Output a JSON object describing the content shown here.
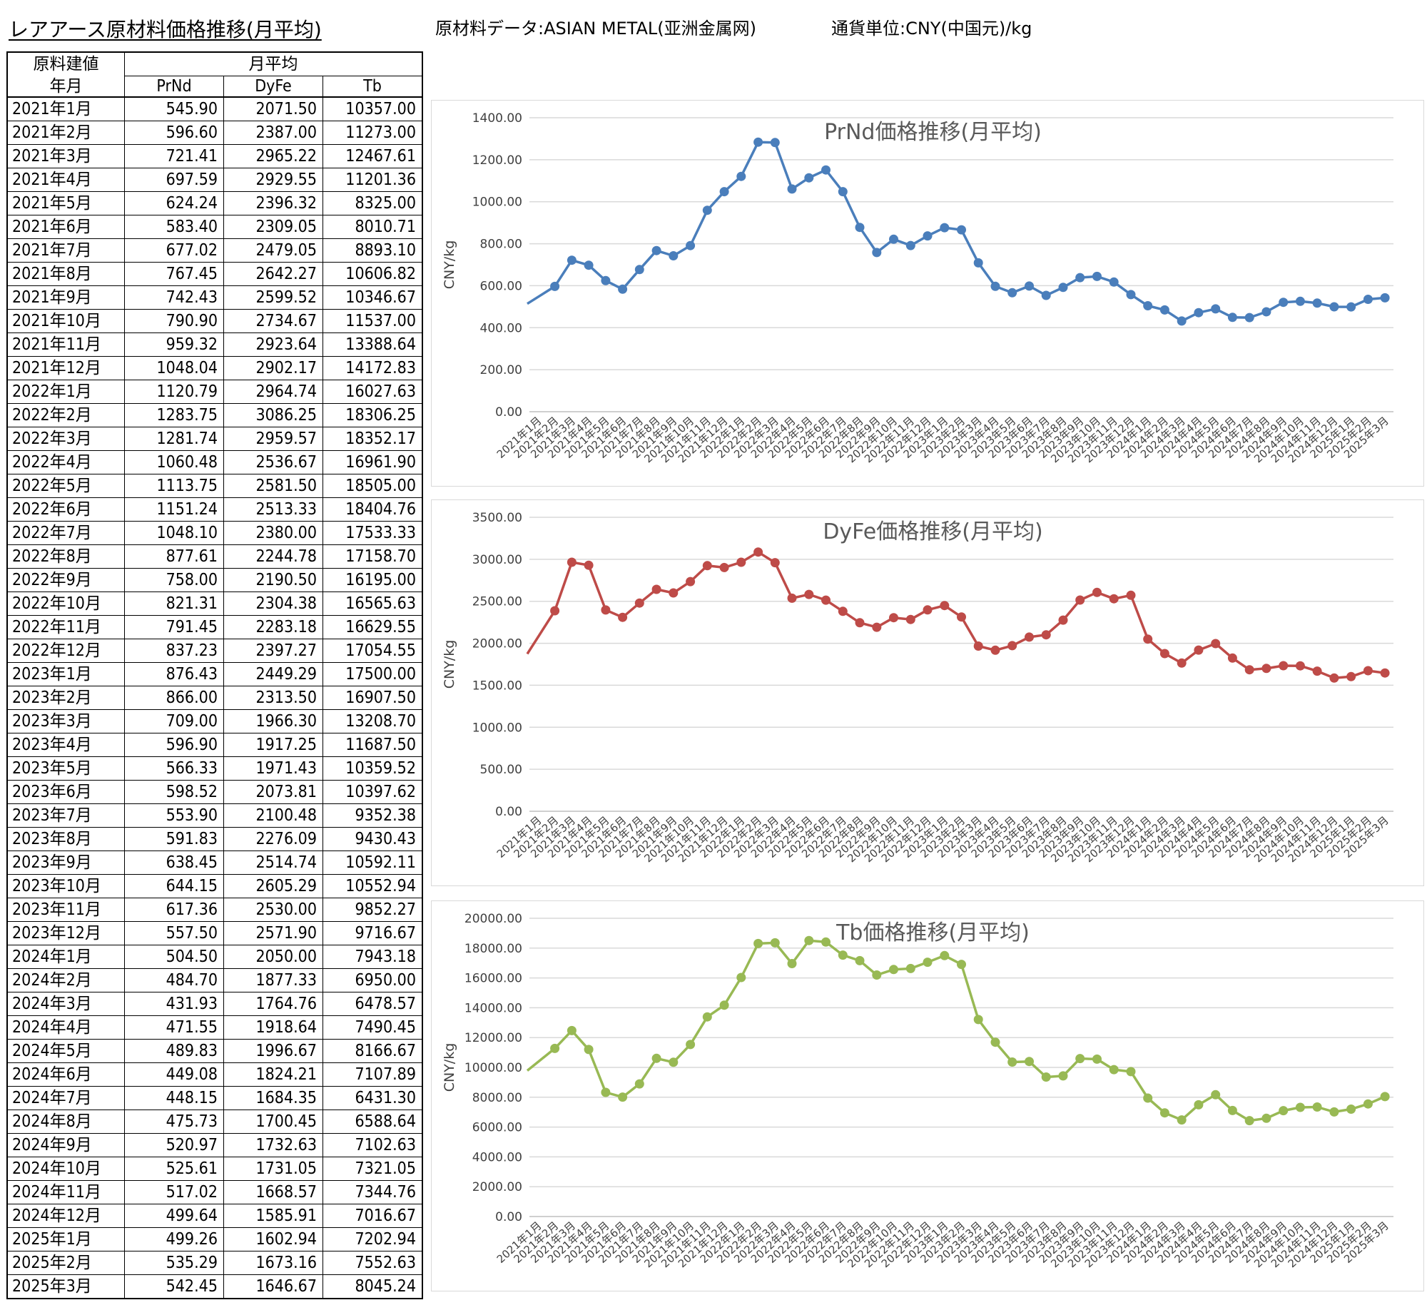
{
  "header": {
    "title": "レアアース原材料価格推移(月平均)",
    "source": "原材料データ:ASIAN METAL(亚洲金属网)",
    "unit": "通貨単位:CNY(中国元)/kg"
  },
  "table": {
    "col1_line1": "原料建値",
    "col1_line2": "年月",
    "group_header": "月平均",
    "columns": [
      "PrNd",
      "DyFe",
      "Tb"
    ]
  },
  "colors": {
    "PrNd": "#4a7ebb",
    "DyFe": "#be4b48",
    "Tb": "#98b954",
    "grid": "#d9d9d9"
  },
  "chart_data": [
    {
      "type": "line",
      "title": "PrNd価格推移(月平均)",
      "ylabel": "CNY/kg",
      "ylim": [
        0,
        1400
      ],
      "ytick_step": 200,
      "grid": true,
      "legend": "none",
      "x": [
        "2021年1月",
        "2021年2月",
        "2021年3月",
        "2021年4月",
        "2021年5月",
        "2021年6月",
        "2021年7月",
        "2021年8月",
        "2021年9月",
        "2021年10月",
        "2021年11月",
        "2021年12月",
        "2022年1月",
        "2022年2月",
        "2022年3月",
        "2022年4月",
        "2022年5月",
        "2022年6月",
        "2022年7月",
        "2022年8月",
        "2022年9月",
        "2022年10月",
        "2022年11月",
        "2022年12月",
        "2023年1月",
        "2023年2月",
        "2023年3月",
        "2023年4月",
        "2023年5月",
        "2023年6月",
        "2023年7月",
        "2023年8月",
        "2023年9月",
        "2023年10月",
        "2023年11月",
        "2023年12月",
        "2024年1月",
        "2024年2月",
        "2024年3月",
        "2024年4月",
        "2024年5月",
        "2024年6月",
        "2024年7月",
        "2024年8月",
        "2024年9月",
        "2024年10月",
        "2024年11月",
        "2024年12月",
        "2025年1月",
        "2025年2月",
        "2025年3月"
      ],
      "series": [
        {
          "values": [
            545.9,
            596.6,
            721.41,
            697.59,
            624.24,
            583.4,
            677.02,
            767.45,
            742.43,
            790.9,
            959.32,
            1048.04,
            1120.79,
            1283.75,
            1281.74,
            1060.48,
            1113.75,
            1151.24,
            1048.1,
            877.61,
            758.0,
            821.31,
            791.45,
            837.23,
            876.43,
            866.0,
            709.0,
            596.9,
            566.33,
            598.52,
            553.9,
            591.83,
            638.45,
            644.15,
            617.36,
            557.5,
            504.5,
            484.7,
            431.93,
            471.55,
            489.83,
            449.08,
            448.15,
            475.73,
            520.97,
            525.61,
            517.02,
            499.64,
            499.26,
            535.29,
            542.45
          ]
        }
      ]
    },
    {
      "type": "line",
      "title": "DyFe価格推移(月平均)",
      "ylabel": "CNY/kg",
      "ylim": [
        0,
        3500
      ],
      "ytick_step": 500,
      "grid": true,
      "legend": "none",
      "x": [
        "2021年1月",
        "2021年2月",
        "2021年3月",
        "2021年4月",
        "2021年5月",
        "2021年6月",
        "2021年7月",
        "2021年8月",
        "2021年9月",
        "2021年10月",
        "2021年11月",
        "2021年12月",
        "2022年1月",
        "2022年2月",
        "2022年3月",
        "2022年4月",
        "2022年5月",
        "2022年6月",
        "2022年7月",
        "2022年8月",
        "2022年9月",
        "2022年10月",
        "2022年11月",
        "2022年12月",
        "2023年1月",
        "2023年2月",
        "2023年3月",
        "2023年4月",
        "2023年5月",
        "2023年6月",
        "2023年7月",
        "2023年8月",
        "2023年9月",
        "2023年10月",
        "2023年11月",
        "2023年12月",
        "2024年1月",
        "2024年2月",
        "2024年3月",
        "2024年4月",
        "2024年5月",
        "2024年6月",
        "2024年7月",
        "2024年8月",
        "2024年9月",
        "2024年10月",
        "2024年11月",
        "2024年12月",
        "2025年1月",
        "2025年2月",
        "2025年3月"
      ],
      "series": [
        {
          "values": [
            2071.5,
            2387.0,
            2965.22,
            2929.55,
            2396.32,
            2309.05,
            2479.05,
            2642.27,
            2599.52,
            2734.67,
            2923.64,
            2902.17,
            2964.74,
            3086.25,
            2959.57,
            2536.67,
            2581.5,
            2513.33,
            2380.0,
            2244.78,
            2190.5,
            2304.38,
            2283.18,
            2397.27,
            2449.29,
            2313.5,
            1966.3,
            1917.25,
            1971.43,
            2073.81,
            2100.48,
            2276.09,
            2514.74,
            2605.29,
            2530.0,
            2571.9,
            2050.0,
            1877.33,
            1764.76,
            1918.64,
            1996.67,
            1824.21,
            1684.35,
            1700.45,
            1732.63,
            1731.05,
            1668.57,
            1585.91,
            1602.94,
            1673.16,
            1646.67
          ]
        }
      ]
    },
    {
      "type": "line",
      "title": "Tb価格推移(月平均)",
      "ylabel": "CNY/kg",
      "ylim": [
        0,
        20000
      ],
      "ytick_step": 2000,
      "grid": true,
      "legend": "none",
      "x": [
        "2021年1月",
        "2021年2月",
        "2021年3月",
        "2021年4月",
        "2021年5月",
        "2021年6月",
        "2021年7月",
        "2021年8月",
        "2021年9月",
        "2021年10月",
        "2021年11月",
        "2021年12月",
        "2022年1月",
        "2022年2月",
        "2022年3月",
        "2022年4月",
        "2022年5月",
        "2022年6月",
        "2022年7月",
        "2022年8月",
        "2022年9月",
        "2022年10月",
        "2022年11月",
        "2022年12月",
        "2023年1月",
        "2023年2月",
        "2023年3月",
        "2023年4月",
        "2023年5月",
        "2023年6月",
        "2023年7月",
        "2023年8月",
        "2023年9月",
        "2023年10月",
        "2023年11月",
        "2023年12月",
        "2024年1月",
        "2024年2月",
        "2024年3月",
        "2024年4月",
        "2024年5月",
        "2024年6月",
        "2024年7月",
        "2024年8月",
        "2024年9月",
        "2024年10月",
        "2024年11月",
        "2024年12月",
        "2025年1月",
        "2025年2月",
        "2025年3月"
      ],
      "series": [
        {
          "values": [
            10357.0,
            11273.0,
            12467.61,
            11201.36,
            8325.0,
            8010.71,
            8893.1,
            10606.82,
            10346.67,
            11537.0,
            13388.64,
            14172.83,
            16027.63,
            18306.25,
            18352.17,
            16961.9,
            18505.0,
            18404.76,
            17533.33,
            17158.7,
            16195.0,
            16565.63,
            16629.55,
            17054.55,
            17500.0,
            16907.5,
            13208.7,
            11687.5,
            10359.52,
            10397.62,
            9352.38,
            9430.43,
            10592.11,
            10552.94,
            9852.27,
            9716.67,
            7943.18,
            6950.0,
            6478.57,
            7490.45,
            8166.67,
            7107.89,
            6431.3,
            6588.64,
            7102.63,
            7321.05,
            7344.76,
            7016.67,
            7202.94,
            7552.63,
            8045.24
          ]
        }
      ]
    }
  ]
}
